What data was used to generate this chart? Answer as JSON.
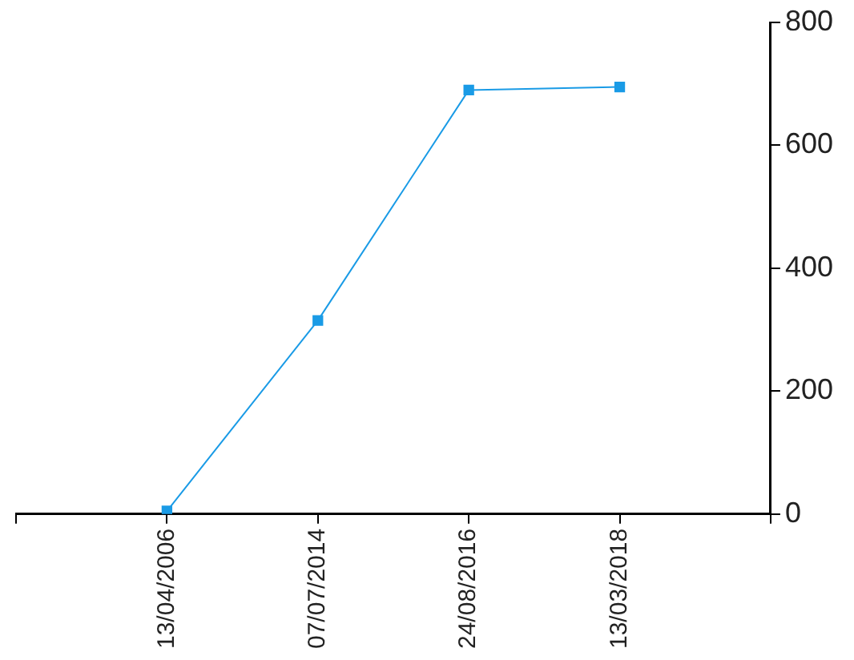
{
  "chart_data": {
    "type": "line",
    "categories": [
      null,
      "13/04/2006",
      "07/07/2014",
      "24/08/2016",
      "13/03/2018",
      null
    ],
    "series": [
      {
        "color": "#1a9be6",
        "values": [
          null,
          5,
          315,
          690,
          695,
          null
        ]
      }
    ],
    "ylim": [
      0,
      800
    ],
    "yticks": [
      0,
      200,
      400,
      600,
      800
    ],
    "grid": false,
    "legend": false,
    "marker": "square",
    "line_style": "solid"
  }
}
